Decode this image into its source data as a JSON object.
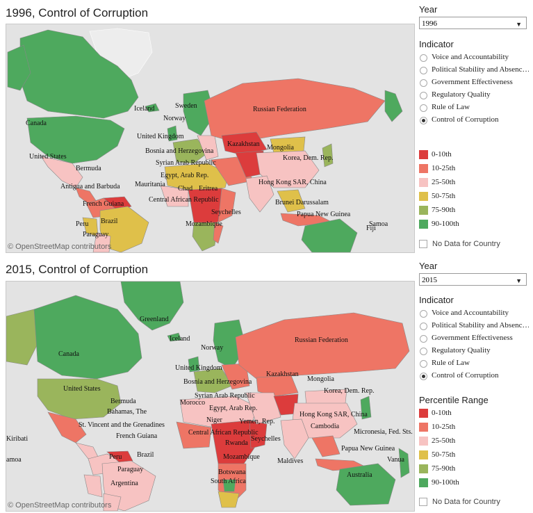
{
  "colors": {
    "r0": "#dc3c3c",
    "r10": "#ee7565",
    "r25": "#f7c3c2",
    "r50": "#dfc04a",
    "r75": "#9ab55c",
    "r90": "#4ea95e",
    "ocean": "#e3e3e3",
    "nodata": "#ffffff"
  },
  "controls": {
    "year_label": "Year",
    "indicator_label": "Indicator",
    "indicators": [
      "Voice and Accountability",
      "Political Stability and Absenc…",
      "Government Effectiveness",
      "Regulatory Quality",
      "Rule of Law",
      "Control of Corruption"
    ],
    "selected_indicator": "Control of Corruption",
    "legend_title": "Percentile Range",
    "legend": [
      {
        "label": "0-10th",
        "color": "#dc3c3c"
      },
      {
        "label": "10-25th",
        "color": "#ee7565"
      },
      {
        "label": "25-50th",
        "color": "#f7c3c2"
      },
      {
        "label": "50-75th",
        "color": "#dfc04a"
      },
      {
        "label": "75-90th",
        "color": "#9ab55c"
      },
      {
        "label": "90-100th",
        "color": "#4ea95e"
      }
    ],
    "no_data_label": "No Data for Country"
  },
  "attribution": "© OpenStreetMap contributors",
  "maps": [
    {
      "title": "1996, Control of Corruption",
      "year": "1996",
      "labels": [
        "Canada",
        "United States",
        "Bermuda",
        "Antigua and Barbuda",
        "French Guiana",
        "Brazil",
        "Peru",
        "Paraguay",
        "Iceland",
        "Sweden",
        "Norway",
        "United Kingdom",
        "Bosnia and Herzegovina",
        "Syrian Arab Republic",
        "Egypt, Arab Rep.",
        "Mauritania",
        "Chad",
        "Eritrea",
        "Central African Republic",
        "Seychelles",
        "Mozambique",
        "Russian Federation",
        "Kazakhstan",
        "Mongolia",
        "Korea, Dem. Rep.",
        "Hong Kong SAR, China",
        "Brunei Darussalam",
        "Papua New Guinea",
        "Samoa",
        "Fiji"
      ]
    },
    {
      "title": "2015, Control of Corruption",
      "year": "2015",
      "labels": [
        "Greenland",
        "Iceland",
        "Canada",
        "United States",
        "Bermuda",
        "Bahamas, The",
        "St. Vincent and the Grenadines",
        "Kiribati",
        "amoa",
        "French Guiana",
        "Brazil",
        "Peru",
        "Paraguay",
        "Argentina",
        "Norway",
        "United Kingdom",
        "Bosnia and Herzegovina",
        "Syrian Arab Republic",
        "Morocco",
        "Egypt, Arab Rep.",
        "Niger",
        "Yemen, Rep.",
        "Central African Republic",
        "Rwanda",
        "Seychelles",
        "Maldives",
        "Mozambique",
        "Botswana",
        "South Africa",
        "Russian Federation",
        "Kazakhstan",
        "Mongolia",
        "Korea, Dem. Rep.",
        "Hong Kong SAR, China",
        "Cambodia",
        "Micronesia, Fed. Sts.",
        "Papua New Guinea",
        "Australia",
        "Vanua"
      ]
    }
  ]
}
